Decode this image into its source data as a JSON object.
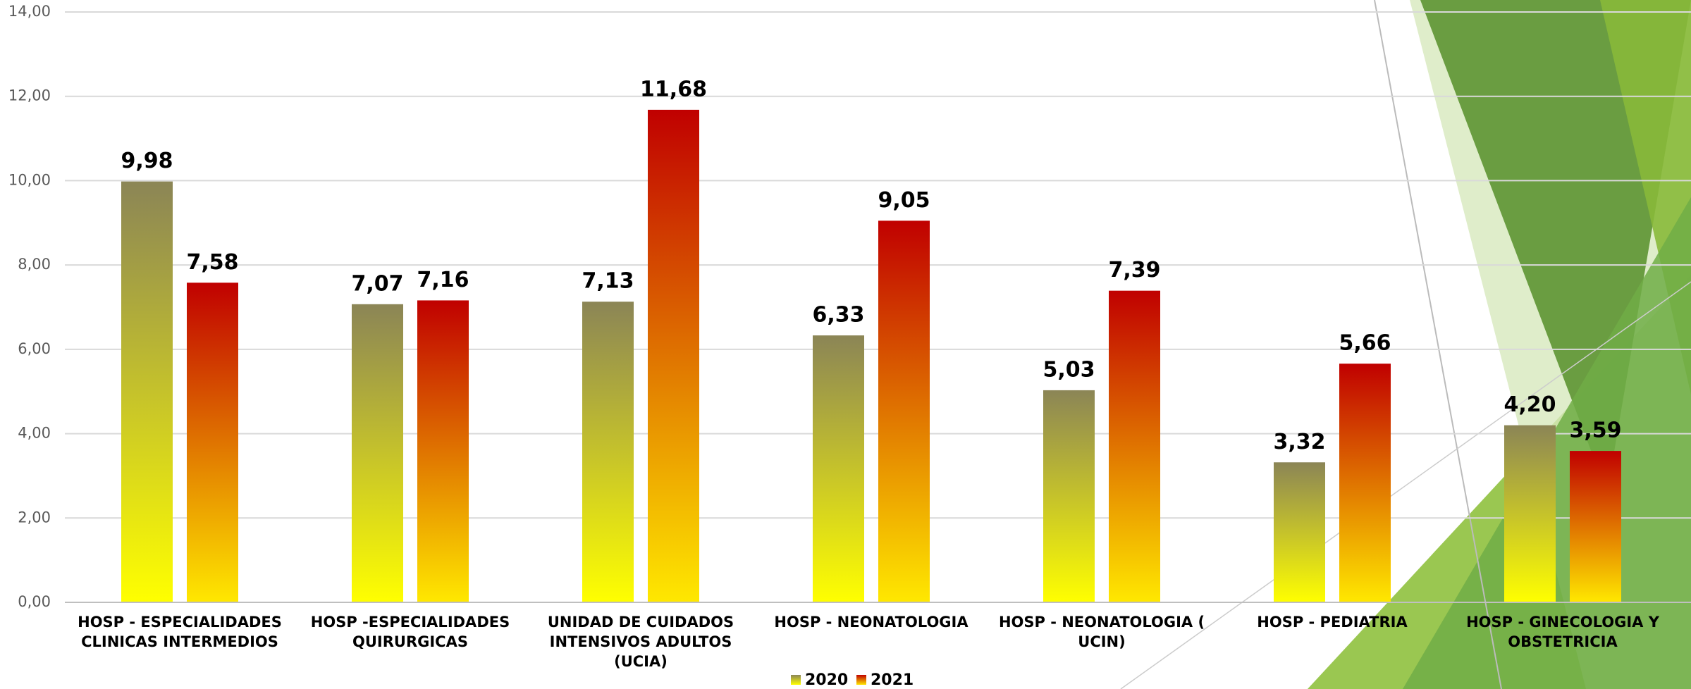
{
  "chart_data": {
    "type": "bar",
    "categories": [
      "HOSP - ESPECIALIDADES CLINICAS INTERMEDIOS",
      "HOSP -ESPECIALIDADES QUIRURGICAS",
      "UNIDAD DE CUIDADOS INTENSIVOS ADULTOS (UCIA)",
      "HOSP - NEONATOLOGIA",
      "HOSP - NEONATOLOGIA ( UCIN)",
      "HOSP - PEDIATRIA",
      "HOSP - GINECOLOGIA Y OBSTETRICIA"
    ],
    "series": [
      {
        "name": "2020",
        "color": "#8b8556",
        "values": [
          9.98,
          7.07,
          7.13,
          6.33,
          5.03,
          3.32,
          4.2
        ],
        "value_labels": [
          "9,98",
          "7,07",
          "7,13",
          "6,33",
          "5,03",
          "3,32",
          "4,20"
        ]
      },
      {
        "name": "2021",
        "color": "#c00000",
        "values": [
          7.58,
          7.16,
          11.68,
          9.05,
          7.39,
          5.66,
          3.59
        ],
        "value_labels": [
          "7,58",
          "7,16",
          "11,68",
          "9,05",
          "7,39",
          "5,66",
          "3,59"
        ]
      }
    ],
    "ylim": [
      0,
      14
    ],
    "yticks": [
      {
        "value": 0,
        "label": "0,00"
      },
      {
        "value": 2,
        "label": "2,00"
      },
      {
        "value": 4,
        "label": "4,00"
      },
      {
        "value": 6,
        "label": "6,00"
      },
      {
        "value": 8,
        "label": "8,00"
      },
      {
        "value": 10,
        "label": "10,00"
      },
      {
        "value": 12,
        "label": "12,00"
      },
      {
        "value": 14,
        "label": "14,00"
      }
    ],
    "grid": true,
    "legend": "bottom"
  }
}
